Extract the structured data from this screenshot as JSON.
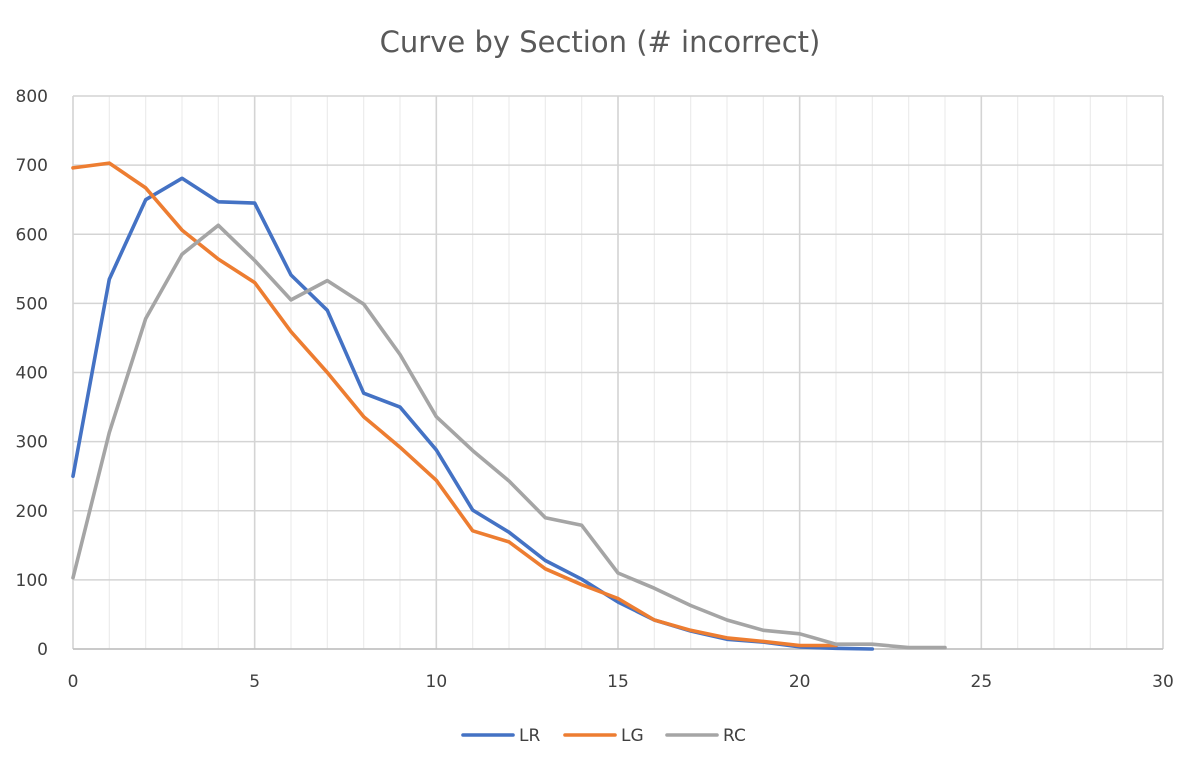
{
  "chart_data": {
    "type": "line",
    "title": "Curve by Section (# incorrect)",
    "xlabel": "",
    "ylabel": "",
    "xlim": [
      0,
      30
    ],
    "ylim": [
      0,
      800
    ],
    "x_ticks": [
      0,
      5,
      10,
      15,
      20,
      25,
      30
    ],
    "y_ticks": [
      0,
      100,
      200,
      300,
      400,
      500,
      600,
      700,
      800
    ],
    "x_tick_labels": [
      "0",
      "5",
      "10",
      "15",
      "20",
      "25",
      "30"
    ],
    "y_tick_labels": [
      "0",
      "100",
      "200",
      "300",
      "400",
      "500",
      "600",
      "700",
      "800"
    ],
    "grid": true,
    "legend_position": "bottom",
    "series": [
      {
        "name": "LR",
        "color": "#4472C4",
        "x": [
          0,
          1,
          2,
          3,
          4,
          5,
          6,
          7,
          8,
          9,
          10,
          11,
          12,
          13,
          14,
          15,
          16,
          17,
          18,
          19,
          20,
          21,
          22
        ],
        "values": [
          250,
          535,
          650,
          681,
          647,
          645,
          541,
          490,
          370,
          350,
          288,
          201,
          169,
          128,
          101,
          68,
          42,
          26,
          14,
          10,
          3,
          1,
          0
        ]
      },
      {
        "name": "LG",
        "color": "#ED7D31",
        "x": [
          0,
          1,
          2,
          3,
          4,
          5,
          6,
          7,
          8,
          9,
          10,
          11,
          12,
          13,
          14,
          15,
          16,
          17,
          18,
          19,
          20,
          21
        ],
        "values": [
          696,
          703,
          667,
          606,
          564,
          530,
          459,
          400,
          336,
          292,
          244,
          171,
          155,
          116,
          93,
          73,
          42,
          27,
          16,
          11,
          5,
          5
        ]
      },
      {
        "name": "RC",
        "color": "#A5A5A5",
        "x": [
          0,
          1,
          2,
          3,
          4,
          5,
          6,
          7,
          8,
          9,
          10,
          11,
          12,
          13,
          14,
          15,
          16,
          17,
          18,
          19,
          20,
          21,
          22,
          23,
          24
        ],
        "values": [
          103,
          313,
          478,
          571,
          613,
          562,
          505,
          533,
          499,
          426,
          336,
          287,
          243,
          190,
          179,
          110,
          88,
          63,
          42,
          27,
          22,
          7,
          7,
          2,
          2
        ]
      }
    ]
  }
}
